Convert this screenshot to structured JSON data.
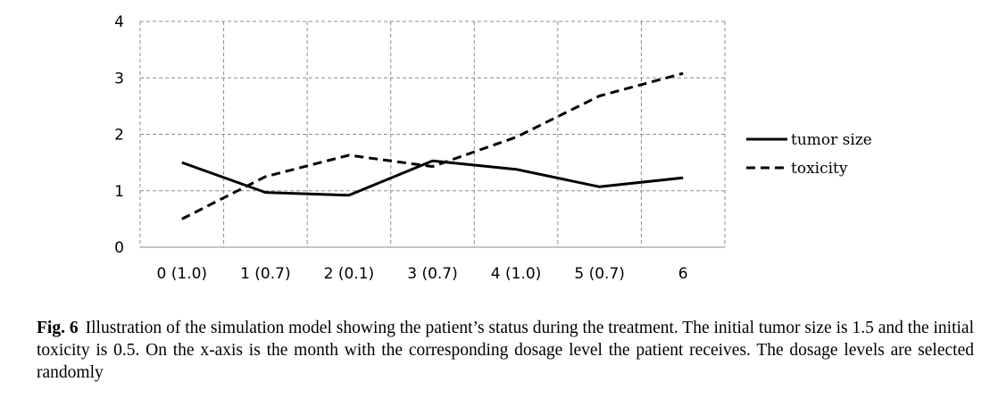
{
  "chart_data": {
    "type": "line",
    "categories": [
      "0 (1.0)",
      "1 (0.7)",
      "2 (0.1)",
      "3 (0.7)",
      "4 (1.0)",
      "5 (0.7)",
      "6"
    ],
    "series": [
      {
        "name": "tumor size",
        "values": [
          1.5,
          0.97,
          0.92,
          1.53,
          1.38,
          1.07,
          1.23
        ],
        "style": "solid",
        "color": "#000000"
      },
      {
        "name": "toxicity",
        "values": [
          0.5,
          1.25,
          1.63,
          1.43,
          1.95,
          2.68,
          3.08
        ],
        "style": "dashed",
        "color": "#000000"
      }
    ],
    "ylim": [
      0,
      4
    ],
    "yticks": [
      0,
      1,
      2,
      3,
      4
    ],
    "grid": true,
    "legend_position": "right"
  },
  "caption": {
    "label": "Fig. 6",
    "text": "Illustration of the simulation model showing the patient’s status during the treatment. The initial tumor size is 1.5 and the initial toxicity is 0.5. On the x-axis is the month with the corresponding dosage level the patient receives. The dosage levels are selected randomly"
  }
}
